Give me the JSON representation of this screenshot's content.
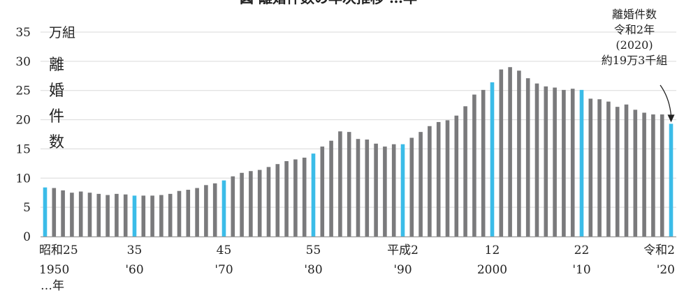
{
  "chart_data": {
    "type": "bar",
    "title": "図 離婚件数の年次推移 …年",
    "ylabel": "離婚件数",
    "unit": "万組",
    "ylim": [
      0,
      35
    ],
    "yticks": [
      0,
      5,
      10,
      15,
      20,
      25,
      30,
      35
    ],
    "grid": true,
    "x": [
      1950,
      1951,
      1952,
      1953,
      1954,
      1955,
      1956,
      1957,
      1958,
      1959,
      1960,
      1961,
      1962,
      1963,
      1964,
      1965,
      1966,
      1967,
      1968,
      1969,
      1970,
      1971,
      1972,
      1973,
      1974,
      1975,
      1976,
      1977,
      1978,
      1979,
      1980,
      1981,
      1982,
      1983,
      1984,
      1985,
      1986,
      1987,
      1988,
      1989,
      1990,
      1991,
      1992,
      1993,
      1994,
      1995,
      1996,
      1997,
      1998,
      1999,
      2000,
      2001,
      2002,
      2003,
      2004,
      2005,
      2006,
      2007,
      2008,
      2009,
      2010,
      2011,
      2012,
      2013,
      2014,
      2015,
      2016,
      2017,
      2018,
      2019,
      2020
    ],
    "values": [
      8.4,
      8.3,
      7.9,
      7.5,
      7.7,
      7.5,
      7.3,
      7.1,
      7.3,
      7.2,
      7.0,
      7.0,
      7.0,
      7.1,
      7.3,
      7.8,
      8.0,
      8.3,
      8.8,
      9.1,
      9.6,
      10.3,
      10.9,
      11.2,
      11.4,
      11.9,
      12.4,
      12.9,
      13.2,
      13.5,
      14.2,
      15.4,
      16.4,
      18.0,
      17.9,
      16.7,
      16.6,
      15.9,
      15.4,
      15.8,
      15.8,
      16.9,
      17.9,
      18.9,
      19.6,
      19.9,
      20.7,
      22.3,
      24.3,
      25.1,
      26.4,
      28.6,
      29.0,
      28.4,
      27.1,
      26.2,
      25.7,
      25.5,
      25.1,
      25.3,
      25.1,
      23.6,
      23.5,
      23.1,
      22.2,
      22.6,
      21.7,
      21.2,
      20.9,
      20.9,
      19.3
    ],
    "highlight_indices": [
      0,
      10,
      20,
      30,
      40,
      50,
      60,
      70
    ],
    "colors": {
      "normal": "#7a7a7c",
      "highlight": "#3bbce8"
    },
    "xtick_labels": [
      {
        "index": 0,
        "line1": "昭和25",
        "line2": "1950"
      },
      {
        "index": 10,
        "line1": "35",
        "line2": "'60"
      },
      {
        "index": 20,
        "line1": "45",
        "line2": "'70"
      },
      {
        "index": 30,
        "line1": "55",
        "line2": "'80"
      },
      {
        "index": 40,
        "line1": "平成2",
        "line2": "'90"
      },
      {
        "index": 50,
        "line1": "12",
        "line2": "2000"
      },
      {
        "index": 60,
        "line1": "22",
        "line2": "'10"
      },
      {
        "index": 70,
        "line1": "令和2",
        "line2": "'20"
      }
    ],
    "x_suffix": "…年",
    "annotation": {
      "lines": [
        "離婚件数",
        "令和2年",
        "(2020)",
        "約19万3千組"
      ],
      "target_index": 70
    }
  }
}
